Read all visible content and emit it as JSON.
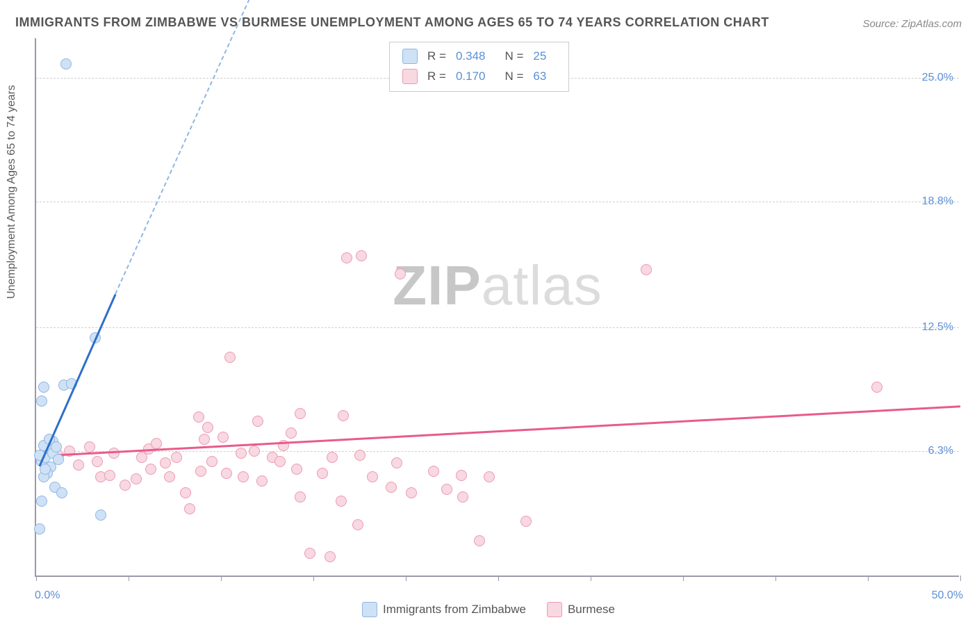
{
  "title": "IMMIGRANTS FROM ZIMBABWE VS BURMESE UNEMPLOYMENT AMONG AGES 65 TO 74 YEARS CORRELATION CHART",
  "source": "Source: ZipAtlas.com",
  "watermark": {
    "part1": "ZIP",
    "part2": "atlas"
  },
  "y_axis_label": "Unemployment Among Ages 65 to 74 years",
  "chart": {
    "type": "scatter",
    "background_color": "#ffffff",
    "grid_color": "#d0d0d0",
    "axis_color": "#9999aa",
    "xlim": [
      0,
      50
    ],
    "ylim": [
      0,
      27
    ],
    "x_ticks": [
      0,
      5,
      10,
      15,
      20,
      25,
      30,
      35,
      40,
      45,
      50
    ],
    "x_tick_labels": {
      "0": "0.0%",
      "50": "50.0%"
    },
    "y_ticks": [
      6.3,
      12.5,
      18.8,
      25.0
    ],
    "y_tick_labels": [
      "6.3%",
      "12.5%",
      "18.8%",
      "25.0%"
    ],
    "marker_radius": 8,
    "marker_stroke_width": 1.5,
    "trend_line_width_solid": 3,
    "trend_line_width_dash": 2
  },
  "series": [
    {
      "key": "zimbabwe",
      "label": "Immigrants from Zimbabwe",
      "fill_color": "#cfe1f5",
      "stroke_color": "#8fb6e4",
      "line_color": "#2e6fc9",
      "line_dash_color": "#8fb6e4",
      "R": "0.348",
      "N": "25",
      "points": [
        [
          0.3,
          5.8
        ],
        [
          0.5,
          6.0
        ],
        [
          0.7,
          6.4
        ],
        [
          0.2,
          6.1
        ],
        [
          0.8,
          5.5
        ],
        [
          0.4,
          6.6
        ],
        [
          0.9,
          6.2
        ],
        [
          1.0,
          4.5
        ],
        [
          0.3,
          3.8
        ],
        [
          1.4,
          4.2
        ],
        [
          0.2,
          2.4
        ],
        [
          3.5,
          3.1
        ],
        [
          1.5,
          9.6
        ],
        [
          1.9,
          9.7
        ],
        [
          0.4,
          9.5
        ],
        [
          0.3,
          8.8
        ],
        [
          0.9,
          6.8
        ],
        [
          1.2,
          5.9
        ],
        [
          0.6,
          5.2
        ],
        [
          0.4,
          5.0
        ],
        [
          1.1,
          6.5
        ],
        [
          3.2,
          12.0
        ],
        [
          1.6,
          25.7
        ],
        [
          0.7,
          6.9
        ],
        [
          0.5,
          5.4
        ]
      ],
      "trend": {
        "x1": 0.2,
        "y1": 5.6,
        "x2": 4.3,
        "y2": 14.2,
        "dash_to_x": 14.5,
        "dash_to_y": 35
      }
    },
    {
      "key": "burmese",
      "label": "Burmese",
      "fill_color": "#f8d8e1",
      "stroke_color": "#ec9ab4",
      "line_color": "#e85b8a",
      "R": "0.170",
      "N": "63",
      "points": [
        [
          1.2,
          6.1
        ],
        [
          1.8,
          6.3
        ],
        [
          2.3,
          5.6
        ],
        [
          2.9,
          6.5
        ],
        [
          3.3,
          5.8
        ],
        [
          3.5,
          5.0
        ],
        [
          4.2,
          6.2
        ],
        [
          4.0,
          5.1
        ],
        [
          5.4,
          4.9
        ],
        [
          5.7,
          6.0
        ],
        [
          6.1,
          6.4
        ],
        [
          6.2,
          5.4
        ],
        [
          7.0,
          5.7
        ],
        [
          7.2,
          5.0
        ],
        [
          7.6,
          6.0
        ],
        [
          8.1,
          4.2
        ],
        [
          8.8,
          8.0
        ],
        [
          8.9,
          5.3
        ],
        [
          9.1,
          6.9
        ],
        [
          9.3,
          7.5
        ],
        [
          9.5,
          5.8
        ],
        [
          10.1,
          7.0
        ],
        [
          10.3,
          5.2
        ],
        [
          8.3,
          3.4
        ],
        [
          10.5,
          11.0
        ],
        [
          11.1,
          6.2
        ],
        [
          11.2,
          5.0
        ],
        [
          11.8,
          6.3
        ],
        [
          12.0,
          7.8
        ],
        [
          12.2,
          4.8
        ],
        [
          12.8,
          6.0
        ],
        [
          13.2,
          5.8
        ],
        [
          13.4,
          6.6
        ],
        [
          13.8,
          7.2
        ],
        [
          14.1,
          5.4
        ],
        [
          14.3,
          8.2
        ],
        [
          14.3,
          4.0
        ],
        [
          16.6,
          8.1
        ],
        [
          14.8,
          1.2
        ],
        [
          15.5,
          5.2
        ],
        [
          15.9,
          1.0
        ],
        [
          16.0,
          6.0
        ],
        [
          16.5,
          3.8
        ],
        [
          17.4,
          2.6
        ],
        [
          17.5,
          6.1
        ],
        [
          18.2,
          5.0
        ],
        [
          19.2,
          4.5
        ],
        [
          19.5,
          5.7
        ],
        [
          20.3,
          4.2
        ],
        [
          21.5,
          5.3
        ],
        [
          22.2,
          4.4
        ],
        [
          23.0,
          5.1
        ],
        [
          23.1,
          4.0
        ],
        [
          24.0,
          1.8
        ],
        [
          16.8,
          16.0
        ],
        [
          17.6,
          16.1
        ],
        [
          19.7,
          15.2
        ],
        [
          24.5,
          5.0
        ],
        [
          26.5,
          2.8
        ],
        [
          33.0,
          15.4
        ],
        [
          45.5,
          9.5
        ],
        [
          4.8,
          4.6
        ],
        [
          6.5,
          6.7
        ]
      ],
      "trend": {
        "x1": 0,
        "y1": 6.1,
        "x2": 50,
        "y2": 8.6
      }
    }
  ],
  "legend_top": {
    "R_label": "R =",
    "N_label": "N ="
  },
  "legend_bottom": {}
}
